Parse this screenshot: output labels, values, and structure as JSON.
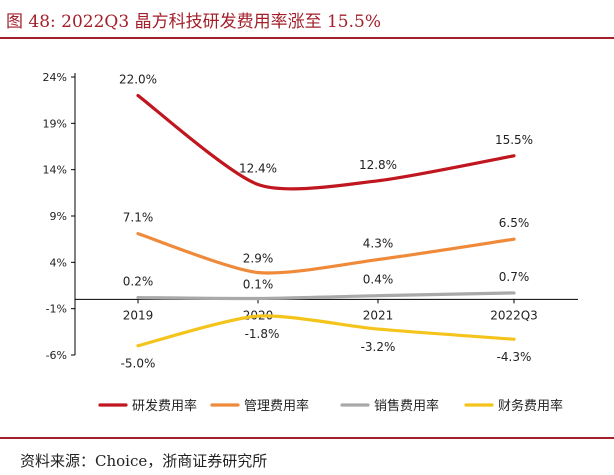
{
  "header": {
    "title": "图 48:   2022Q3 晶方科技研发费用率涨至 15.5%"
  },
  "footer": {
    "source": "资料来源：Choice，浙商证券研究所"
  },
  "chart_data": {
    "type": "line",
    "title": "",
    "xlabel": "",
    "ylabel": "",
    "categories": [
      "2019",
      "2020",
      "2021",
      "2022Q3"
    ],
    "y_ticks": [
      "24%",
      "19%",
      "14%",
      "9%",
      "4%",
      "-1%",
      "-6%"
    ],
    "ylim": [
      -6,
      24
    ],
    "y_unit": "%",
    "legend_position": "bottom",
    "grid": false,
    "series": [
      {
        "name": "研发费用率",
        "color": "#c0161f",
        "values": [
          22.0,
          12.4,
          12.8,
          15.5
        ],
        "labels": [
          "22.0%",
          "12.4%",
          "12.8%",
          "15.5%"
        ]
      },
      {
        "name": "管理费用率",
        "color": "#ef8a3a",
        "values": [
          7.1,
          2.9,
          4.3,
          6.5
        ],
        "labels": [
          "7.1%",
          "2.9%",
          "4.3%",
          "6.5%"
        ]
      },
      {
        "name": "销售费用率",
        "color": "#a9a9a9",
        "values": [
          0.2,
          0.1,
          0.4,
          0.7
        ],
        "labels": [
          "0.2%",
          "0.1%",
          "0.4%",
          "0.7%"
        ]
      },
      {
        "name": "财务费用率",
        "color": "#f4c41c",
        "values": [
          -5.0,
          -1.8,
          -3.2,
          -4.3
        ],
        "labels": [
          "-5.0%",
          "-1.8%",
          "-3.2%",
          "-4.3%"
        ]
      }
    ]
  }
}
